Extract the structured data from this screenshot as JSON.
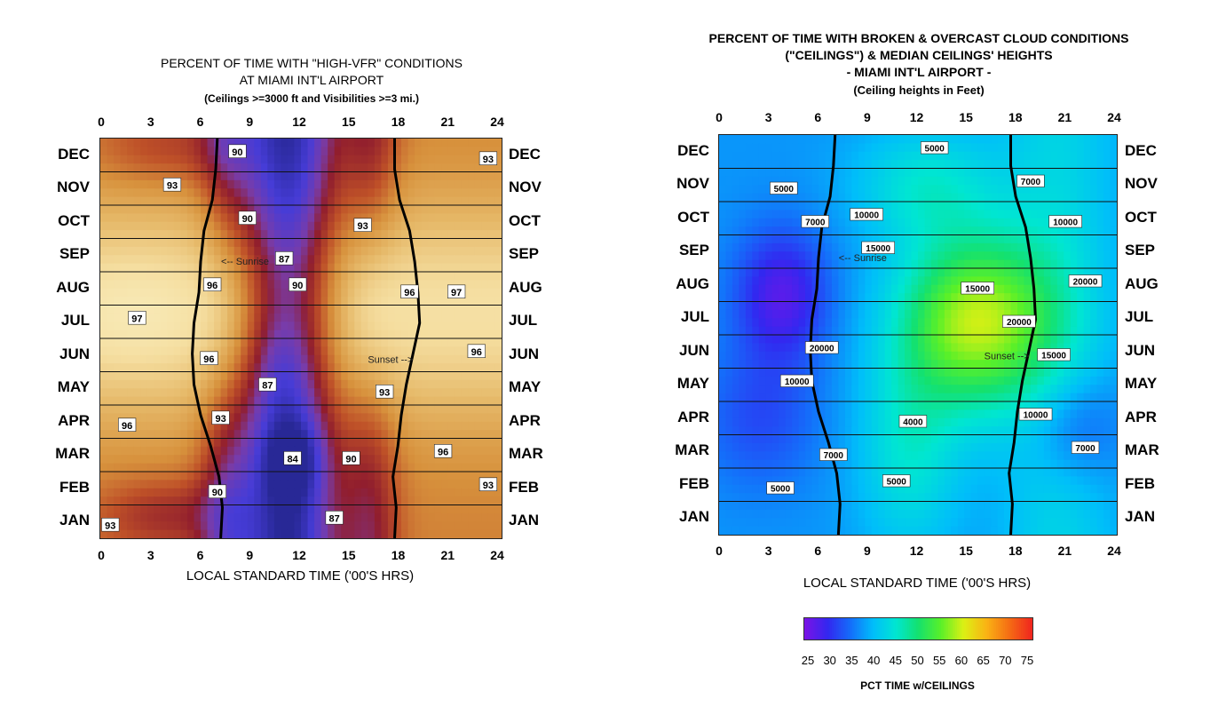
{
  "chart_data": [
    {
      "type": "heatmap",
      "title": "PERCENT OF TIME WITH \"HIGH-VFR\" CONDITIONS",
      "title_line2": "AT MIAMI INT'L AIRPORT",
      "subtitle": "(Ceilings >=3000 ft and Visibilities >=3 mi.)",
      "xlabel": "LOCAL STANDARD TIME ('00'S HRS)",
      "x_ticks": [
        "0",
        "3",
        "6",
        "9",
        "12",
        "15",
        "18",
        "21",
        "24"
      ],
      "xlim": [
        0,
        24
      ],
      "months": [
        "DEC",
        "NOV",
        "OCT",
        "SEP",
        "AUG",
        "JUL",
        "JUN",
        "MAY",
        "APR",
        "MAR",
        "FEB",
        "JAN"
      ],
      "colormap": "brown-orange-cream (high) to red to purple-blue (low)",
      "contour_labels": [
        {
          "text": "90",
          "hour": 8.2,
          "month": "DEC"
        },
        {
          "text": "93",
          "hour": 23.2,
          "month": "DEC"
        },
        {
          "text": "93",
          "hour": 4.3,
          "month": "NOV"
        },
        {
          "text": "93",
          "hour": 15.7,
          "month": "OCT"
        },
        {
          "text": "90",
          "hour": 8.8,
          "month": "OCT"
        },
        {
          "text": "87",
          "hour": 11,
          "month": "SEP"
        },
        {
          "text": "96",
          "hour": 6.7,
          "month": "AUG"
        },
        {
          "text": "96",
          "hour": 18.5,
          "month": "AUG"
        },
        {
          "text": "90",
          "hour": 11.8,
          "month": "AUG"
        },
        {
          "text": "97",
          "hour": 21.3,
          "month": "AUG"
        },
        {
          "text": "97",
          "hour": 2.2,
          "month": "JUL"
        },
        {
          "text": "96",
          "hour": 6.5,
          "month": "JUN"
        },
        {
          "text": "96",
          "hour": 22.5,
          "month": "JUN"
        },
        {
          "text": "93",
          "hour": 17,
          "month": "MAY"
        },
        {
          "text": "87",
          "hour": 10,
          "month": "MAY"
        },
        {
          "text": "96",
          "hour": 1.6,
          "month": "APR"
        },
        {
          "text": "93",
          "hour": 7.2,
          "month": "APR"
        },
        {
          "text": "90",
          "hour": 15,
          "month": "MAR"
        },
        {
          "text": "96",
          "hour": 20.5,
          "month": "MAR"
        },
        {
          "text": "84",
          "hour": 11.5,
          "month": "MAR"
        },
        {
          "text": "93",
          "hour": 23.2,
          "month": "FEB"
        },
        {
          "text": "90",
          "hour": 7,
          "month": "FEB"
        },
        {
          "text": "87",
          "hour": 14,
          "month": "JAN"
        },
        {
          "text": "93",
          "hour": 0.6,
          "month": "JAN"
        }
      ],
      "annotations": [
        "<-- Sunrise",
        "Sunset -->"
      ],
      "sunrise_hours": [
        7.0,
        6.9,
        6.7,
        6.2,
        6.0,
        5.9,
        5.6,
        5.5,
        5.6,
        6.0,
        6.6,
        7.1,
        7.3,
        7.2
      ],
      "sunset_hours": [
        17.6,
        17.6,
        17.9,
        18.5,
        18.8,
        19.0,
        19.1,
        18.7,
        18.3,
        18.0,
        17.8,
        17.5,
        17.7,
        17.6
      ]
    },
    {
      "type": "heatmap",
      "title": "PERCENT OF TIME WITH BROKEN & OVERCAST CLOUD CONDITIONS",
      "title_line2": "(\"CEILINGS\")  & MEDIAN CEILINGS' HEIGHTS",
      "title_line3": "- MIAMI INT'L AIRPORT -",
      "subtitle": "(Ceiling heights in Feet)",
      "xlabel": "LOCAL STANDARD TIME ('00'S HRS)",
      "x_ticks": [
        "0",
        "3",
        "6",
        "9",
        "12",
        "15",
        "18",
        "21",
        "24"
      ],
      "xlim": [
        0,
        24
      ],
      "months": [
        "DEC",
        "NOV",
        "OCT",
        "SEP",
        "AUG",
        "JUL",
        "JUN",
        "MAY",
        "APR",
        "MAR",
        "FEB",
        "JAN"
      ],
      "colorbar": {
        "ticks": [
          "25",
          "30",
          "35",
          "40",
          "45",
          "50",
          "55",
          "60",
          "65",
          "70",
          "75"
        ],
        "range": [
          25,
          75
        ],
        "label": "PCT TIME w/CEILINGS"
      },
      "contour_labels": [
        {
          "text": "5000",
          "hour": 13,
          "month": "DEC"
        },
        {
          "text": "5000",
          "hour": 3.9,
          "month": "NOV"
        },
        {
          "text": "7000",
          "hour": 18.8,
          "month": "NOV"
        },
        {
          "text": "7000",
          "hour": 5.8,
          "month": "OCT"
        },
        {
          "text": "10000",
          "hour": 8.9,
          "month": "OCT"
        },
        {
          "text": "10000",
          "hour": 20.9,
          "month": "OCT"
        },
        {
          "text": "15000",
          "hour": 9.6,
          "month": "SEP"
        },
        {
          "text": "15000",
          "hour": 15.6,
          "month": "AUG"
        },
        {
          "text": "20000",
          "hour": 22.1,
          "month": "AUG"
        },
        {
          "text": "20000",
          "hour": 18.1,
          "month": "JUL"
        },
        {
          "text": "20000",
          "hour": 6.2,
          "month": "JUN"
        },
        {
          "text": "15000",
          "hour": 20.2,
          "month": "JUN"
        },
        {
          "text": "10000",
          "hour": 4.7,
          "month": "MAY"
        },
        {
          "text": "4000",
          "hour": 11.7,
          "month": "APR"
        },
        {
          "text": "10000",
          "hour": 19.1,
          "month": "APR"
        },
        {
          "text": "7000",
          "hour": 6.9,
          "month": "MAR"
        },
        {
          "text": "7000",
          "hour": 22.1,
          "month": "MAR"
        },
        {
          "text": "5000",
          "hour": 3.7,
          "month": "FEB"
        },
        {
          "text": "5000",
          "hour": 10.7,
          "month": "FEB"
        }
      ],
      "annotations": [
        "<-- Sunrise",
        "Sunset -->"
      ],
      "sunrise_hours": [
        7.0,
        6.9,
        6.7,
        6.2,
        6.0,
        5.9,
        5.6,
        5.5,
        5.6,
        6.0,
        6.6,
        7.1,
        7.3,
        7.2
      ],
      "sunset_hours": [
        17.6,
        17.6,
        17.9,
        18.5,
        18.8,
        19.0,
        19.1,
        18.7,
        18.3,
        18.0,
        17.8,
        17.5,
        17.7,
        17.6
      ]
    }
  ],
  "colors": {
    "vfr_high": "#f8f0c0",
    "vfr_mid": "#d99a40",
    "vfr_low_red": "#8e1c2a",
    "vfr_low_blue": "#3f3fd8",
    "ceil_low": "#6a20e8",
    "ceil_mid": "#20e080",
    "ceil_high": "#f03a10"
  }
}
